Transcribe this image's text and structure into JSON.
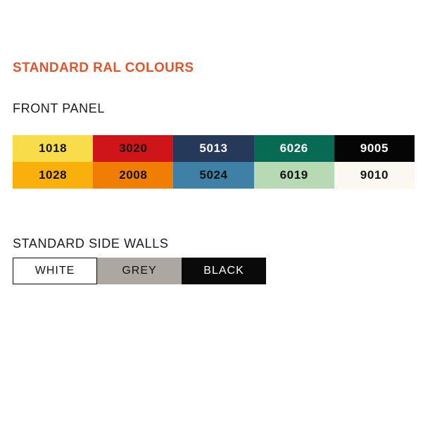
{
  "theme": {
    "accent": "#E5542C",
    "heading_text": "#1B1B20",
    "background": "#FFFFFF"
  },
  "title": "STANDARD RAL COLOURS",
  "front_panel": {
    "heading": "FRONT PANEL",
    "rows": [
      [
        {
          "code": "1018",
          "bg": "#F9DC4A",
          "fg": "#121212"
        },
        {
          "code": "3020",
          "bg": "#CF1519",
          "fg": "#121212"
        },
        {
          "code": "5013",
          "bg": "#26395A",
          "fg": "#FFFFFF"
        },
        {
          "code": "6026",
          "bg": "#076B53",
          "fg": "#FFFFFF"
        },
        {
          "code": "9005",
          "bg": "#050505",
          "fg": "#FFFFFF"
        }
      ],
      [
        {
          "code": "1028",
          "bg": "#F9B00C",
          "fg": "#121212"
        },
        {
          "code": "2008",
          "bg": "#F07E04",
          "fg": "#121212"
        },
        {
          "code": "5024",
          "bg": "#3F80A6",
          "fg": "#121212"
        },
        {
          "code": "6019",
          "bg": "#B7D9B3",
          "fg": "#121212"
        },
        {
          "code": "9010",
          "bg": "#FAF8F0",
          "fg": "#121212"
        }
      ]
    ]
  },
  "side_walls": {
    "heading": "STANDARD SIDE WALLS",
    "swatches": [
      {
        "label": "WHITE",
        "bg": "#FFFFFF",
        "fg": "#121212",
        "border": "1px solid #0a0a0a"
      },
      {
        "label": "GREY",
        "bg": "#ACA7A0",
        "fg": "#121212",
        "border": "none"
      },
      {
        "label": "BLACK",
        "bg": "#0A0A0A",
        "fg": "#FFFFFF",
        "border": "none"
      }
    ]
  }
}
